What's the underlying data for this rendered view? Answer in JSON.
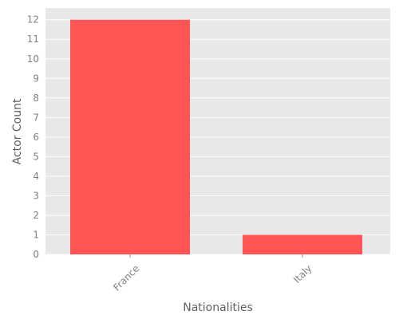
{
  "chart_data": {
    "type": "bar",
    "categories": [
      "France",
      "Italy"
    ],
    "values": [
      12,
      1
    ],
    "title": "",
    "xlabel": "Nationalities",
    "ylabel": "Actor Count",
    "ylim": [
      0,
      12.6
    ],
    "yticks": [
      0,
      1,
      2,
      3,
      4,
      5,
      6,
      7,
      8,
      9,
      10,
      11,
      12
    ],
    "grid": true,
    "legend": "none",
    "x_tick_rotation_deg": 45
  },
  "colors": {
    "bar": "#ff5555",
    "plot_background": "#e8e8e8",
    "grid": "#ffffff",
    "tick_text": "#808080",
    "axis_title": "#606060"
  }
}
